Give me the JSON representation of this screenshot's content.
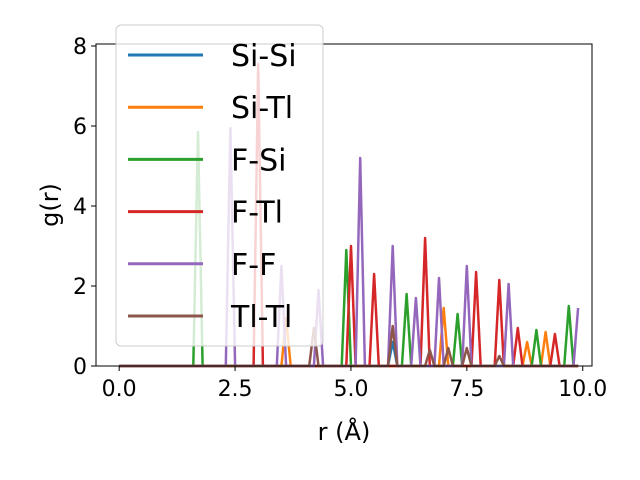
{
  "chart_data": {
    "type": "line",
    "title": "",
    "xlabel": "r (Å)",
    "ylabel": "g(r)",
    "xlim": [
      -0.5,
      10.2
    ],
    "ylim": [
      0,
      8.05
    ],
    "xticks": [
      0.0,
      2.5,
      5.0,
      7.5,
      10.0
    ],
    "xtick_labels": [
      "0.0",
      "2.5",
      "5.0",
      "7.5",
      "10.0"
    ],
    "yticks": [
      0,
      2,
      4,
      6,
      8
    ],
    "ytick_labels": [
      "0",
      "2",
      "4",
      "6",
      "8"
    ],
    "grid": false,
    "legend_position": "top-left",
    "series": [
      {
        "name": "Si-Si",
        "color": "#1f77b4",
        "x": [
          0,
          5.8,
          5.9,
          6.0,
          9.9
        ],
        "y": [
          0,
          0,
          0.6,
          0,
          0
        ]
      },
      {
        "name": "Si-Tl",
        "color": "#ff7f0e",
        "x": [
          0,
          3.5,
          3.6,
          3.7,
          6.9,
          7.0,
          7.1,
          8.7,
          8.8,
          8.9,
          9.1,
          9.2,
          9.3,
          9.9
        ],
        "y": [
          0,
          0,
          1.2,
          0,
          0,
          1.45,
          0,
          0,
          0.6,
          0,
          0,
          0.85,
          0,
          0
        ]
      },
      {
        "name": "F-Si",
        "color": "#2ca02c",
        "x": [
          0,
          1.6,
          1.7,
          1.8,
          4.8,
          4.9,
          5.0,
          6.1,
          6.2,
          6.3,
          7.2,
          7.3,
          7.4,
          8.9,
          9.0,
          9.1,
          9.6,
          9.7,
          9.8,
          9.9
        ],
        "y": [
          0,
          0,
          5.85,
          0,
          0,
          2.9,
          0,
          0,
          1.8,
          0,
          0,
          1.3,
          0,
          0,
          0.9,
          0,
          0,
          1.5,
          0,
          0
        ]
      },
      {
        "name": "F-Tl",
        "color": "#d62728",
        "x": [
          0,
          2.9,
          3.0,
          3.1,
          4.9,
          5.0,
          5.1,
          5.4,
          5.5,
          5.6,
          6.5,
          6.6,
          6.7,
          7.6,
          7.7,
          7.8,
          8.1,
          8.2,
          8.3,
          8.5,
          8.6,
          8.7,
          9.3,
          9.4,
          9.5,
          9.9
        ],
        "y": [
          0,
          0,
          7.55,
          0,
          0,
          3.0,
          0,
          0,
          2.3,
          0,
          0,
          3.2,
          0,
          0,
          2.35,
          0,
          0,
          2.15,
          0,
          0,
          0.95,
          0,
          0,
          0.8,
          0,
          0
        ]
      },
      {
        "name": "F-F",
        "color": "#9467bd",
        "x": [
          0,
          2.3,
          2.4,
          2.5,
          3.4,
          3.5,
          3.6,
          4.2,
          4.3,
          4.4,
          5.1,
          5.2,
          5.3,
          5.8,
          5.9,
          6.0,
          6.3,
          6.4,
          6.5,
          6.8,
          6.9,
          7.0,
          7.4,
          7.5,
          7.6,
          8.3,
          8.4,
          8.5,
          9.8,
          9.9
        ],
        "y": [
          0,
          0,
          5.95,
          0,
          0,
          2.5,
          0,
          0,
          1.9,
          0,
          0,
          5.2,
          0,
          0,
          3.0,
          0,
          0,
          1.7,
          0,
          0,
          2.2,
          0,
          0,
          2.5,
          0,
          0,
          2.05,
          0,
          0,
          1.45
        ]
      },
      {
        "name": "Tl-Tl",
        "color": "#8c564b",
        "x": [
          0,
          4.1,
          4.2,
          4.3,
          5.8,
          5.9,
          6.0,
          6.6,
          6.7,
          6.8,
          7.0,
          7.1,
          7.2,
          7.4,
          7.5,
          7.6,
          8.1,
          8.2,
          8.3,
          9.9
        ],
        "y": [
          0,
          0,
          0.95,
          0,
          0,
          1.0,
          0,
          0,
          0.4,
          0,
          0,
          0.45,
          0,
          0,
          0.45,
          0,
          0,
          0.25,
          0,
          0
        ]
      }
    ]
  }
}
